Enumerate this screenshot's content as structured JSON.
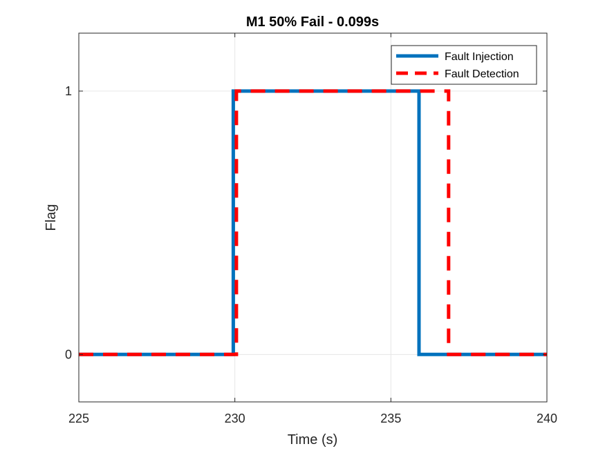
{
  "chart_data": {
    "type": "line",
    "title": "M1 50% Fail - 0.099s",
    "xlabel": "Time (s)",
    "ylabel": "Flag",
    "xlim": [
      225,
      240
    ],
    "ylim": [
      -0.18,
      1.22
    ],
    "xticks": [
      225,
      230,
      235,
      240
    ],
    "xtick_labels": [
      "225",
      "230",
      "235",
      "240"
    ],
    "yticks": [
      0,
      1
    ],
    "ytick_labels": [
      "0",
      "1"
    ],
    "grid": true,
    "legend_position": "top-right",
    "series": [
      {
        "name": "Fault Injection",
        "color": "#0072BD",
        "style": "solid",
        "x": [
          225,
          229.95,
          229.95,
          235.9,
          235.9,
          240
        ],
        "y": [
          0,
          0,
          1,
          1,
          0,
          0
        ]
      },
      {
        "name": "Fault Detection",
        "color": "#FF0000",
        "style": "dashed",
        "x": [
          225,
          230.05,
          230.05,
          236.85,
          236.85,
          240
        ],
        "y": [
          0,
          0,
          1,
          1,
          0,
          0
        ]
      }
    ]
  }
}
